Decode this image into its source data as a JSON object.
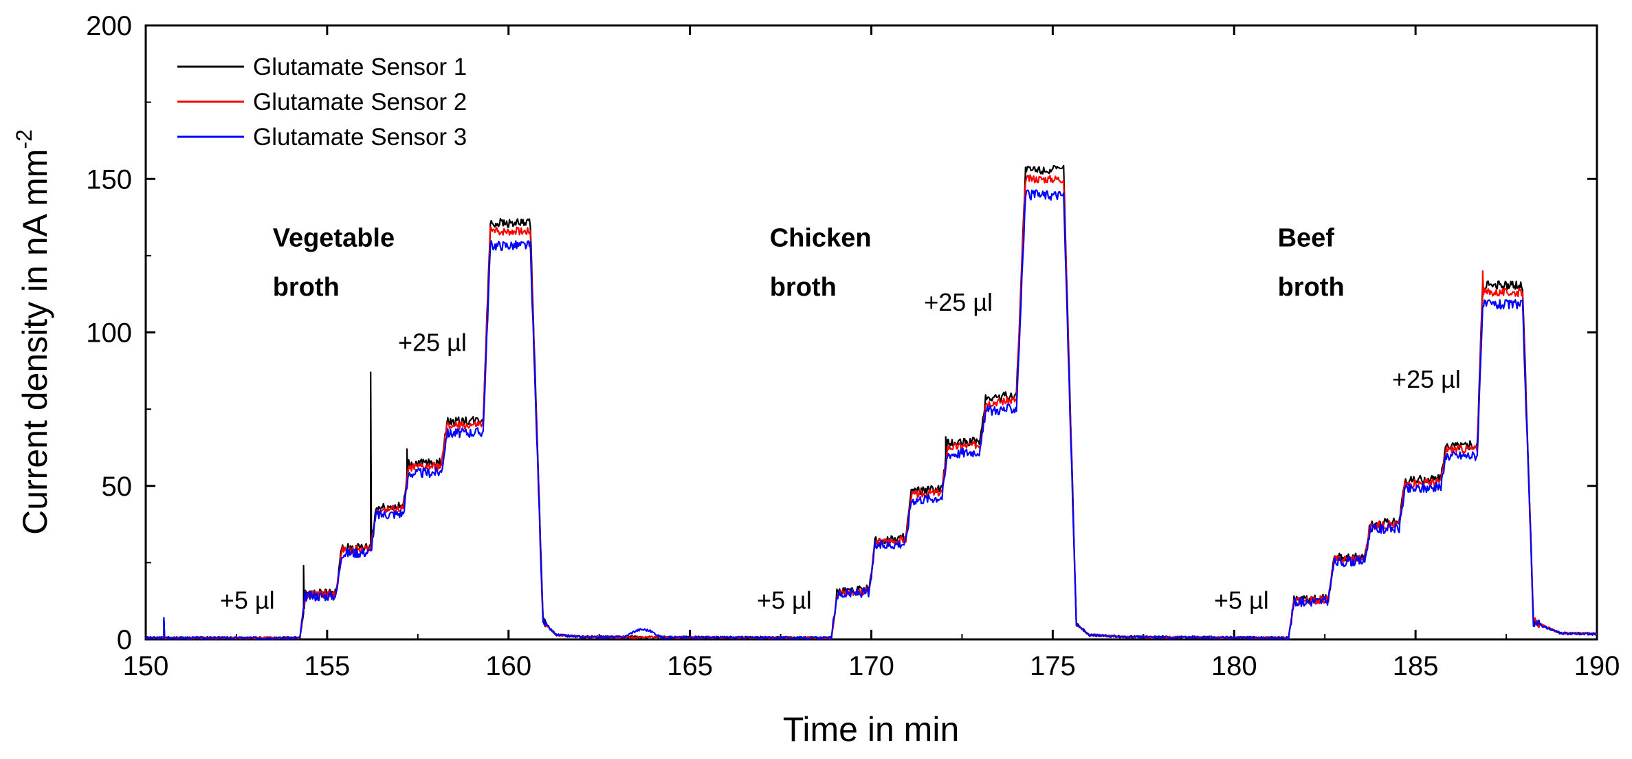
{
  "chart_data": {
    "type": "line",
    "title": "",
    "xlabel": "Time in min",
    "ylabel_main": "Current density in nA mm",
    "ylabel_sup": "-2",
    "xlim": [
      150,
      190
    ],
    "ylim": [
      0,
      200
    ],
    "xticks": [
      150,
      155,
      160,
      165,
      170,
      175,
      180,
      185,
      190
    ],
    "yticks": [
      0,
      50,
      100,
      150,
      200
    ],
    "legend_position": "top-left",
    "series": [
      {
        "name": "Glutamate Sensor 1",
        "color": "#000000",
        "scale": 1.02,
        "noise": 0.9,
        "seed": 1
      },
      {
        "name": "Glutamate Sensor 2",
        "color": "#ff0000",
        "scale": 1.0,
        "noise": 0.8,
        "seed": 2
      },
      {
        "name": "Glutamate Sensor 3",
        "color": "#0000ff",
        "scale": 0.965,
        "noise": 1.0,
        "seed": 3
      }
    ],
    "profile_points": [
      [
        150,
        0.5
      ],
      [
        154.25,
        0.5
      ],
      [
        154.4,
        14.5
      ],
      [
        155.25,
        14.8
      ],
      [
        155.4,
        29
      ],
      [
        156.2,
        29.5
      ],
      [
        156.35,
        42
      ],
      [
        157.1,
        42.5
      ],
      [
        157.25,
        56
      ],
      [
        158.15,
        56.5
      ],
      [
        158.3,
        69.5
      ],
      [
        159.3,
        70
      ],
      [
        159.5,
        133
      ],
      [
        160.6,
        133
      ],
      [
        160.95,
        6
      ],
      [
        161.3,
        1.5
      ],
      [
        162,
        0.8
      ],
      [
        168.9,
        0.5
      ],
      [
        169.05,
        15
      ],
      [
        169.95,
        16
      ],
      [
        170.1,
        31.5
      ],
      [
        170.95,
        32.5
      ],
      [
        171.1,
        47
      ],
      [
        171.95,
        48
      ],
      [
        172.1,
        62.5
      ],
      [
        173.0,
        63.5
      ],
      [
        173.15,
        77
      ],
      [
        174.0,
        78
      ],
      [
        174.25,
        150
      ],
      [
        175.3,
        150
      ],
      [
        175.65,
        5
      ],
      [
        176.0,
        1.5
      ],
      [
        177,
        0.8
      ],
      [
        181.5,
        0.5
      ],
      [
        181.65,
        12.5
      ],
      [
        182.6,
        13
      ],
      [
        182.75,
        26
      ],
      [
        183.6,
        26.5
      ],
      [
        183.75,
        37
      ],
      [
        184.55,
        37.5
      ],
      [
        184.7,
        50.5
      ],
      [
        185.7,
        51.5
      ],
      [
        185.85,
        62
      ],
      [
        186.7,
        62
      ],
      [
        186.85,
        113
      ],
      [
        187.95,
        113
      ],
      [
        188.25,
        6
      ],
      [
        188.6,
        4
      ],
      [
        189.0,
        2
      ],
      [
        190,
        1.8
      ]
    ],
    "spikes": [
      {
        "series": 0,
        "x": 156.2,
        "y": 87
      },
      {
        "series": 0,
        "x": 154.35,
        "y": 24
      },
      {
        "series": 0,
        "x": 157.2,
        "y": 62
      },
      {
        "series": 0,
        "x": 172.05,
        "y": 66
      },
      {
        "series": 0,
        "x": 150.5,
        "y": 7
      },
      {
        "series": 2,
        "x": 150.5,
        "y": 7
      },
      {
        "series": 1,
        "x": 186.85,
        "y": 120
      }
    ],
    "annotations": [
      {
        "text": "+5 µl",
        "x": 152.8,
        "y": 10,
        "bold": false,
        "anchor": "middle"
      },
      {
        "text": "+25 µl",
        "x": 157.9,
        "y": 94,
        "bold": false,
        "anchor": "middle"
      },
      {
        "text": "Vegetable",
        "x": 153.5,
        "y": 128,
        "bold": true,
        "anchor": "start"
      },
      {
        "text": "broth",
        "x": 153.5,
        "y": 112,
        "bold": true,
        "anchor": "start"
      },
      {
        "text": "+5 µl",
        "x": 167.6,
        "y": 10,
        "bold": false,
        "anchor": "middle"
      },
      {
        "text": "+25 µl",
        "x": 172.4,
        "y": 107,
        "bold": false,
        "anchor": "middle"
      },
      {
        "text": "Chicken",
        "x": 167.2,
        "y": 128,
        "bold": true,
        "anchor": "start"
      },
      {
        "text": "broth",
        "x": 167.2,
        "y": 112,
        "bold": true,
        "anchor": "start"
      },
      {
        "text": "+5 µl",
        "x": 180.2,
        "y": 10,
        "bold": false,
        "anchor": "middle"
      },
      {
        "text": "+25 µl",
        "x": 185.3,
        "y": 82,
        "bold": false,
        "anchor": "middle"
      },
      {
        "text": "Beef",
        "x": 181.2,
        "y": 128,
        "bold": true,
        "anchor": "start"
      },
      {
        "text": "broth",
        "x": 181.2,
        "y": 112,
        "bold": true,
        "anchor": "start"
      }
    ]
  }
}
